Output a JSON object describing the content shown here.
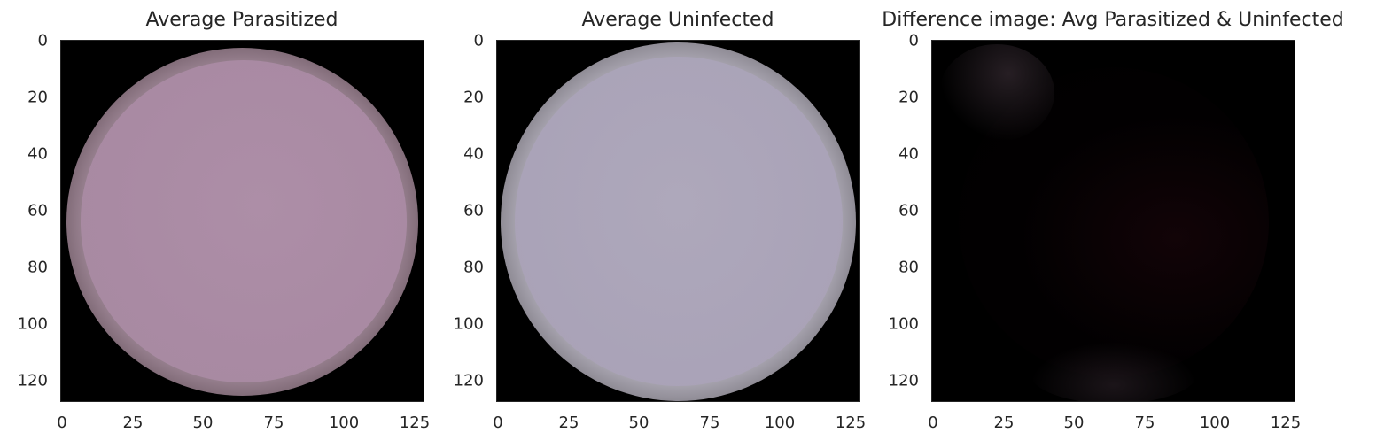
{
  "chart_data": [
    {
      "type": "image",
      "title": "Average Parasitized",
      "xlim": [
        0,
        128
      ],
      "ylim": [
        128,
        0
      ],
      "xticks": [
        "0",
        "25",
        "50",
        "75",
        "100",
        "125"
      ],
      "yticks": [
        "0",
        "20",
        "40",
        "60",
        "80",
        "100",
        "120"
      ],
      "xtick_values": [
        0,
        25,
        50,
        75,
        100,
        125
      ],
      "ytick_values": [
        0,
        20,
        40,
        60,
        80,
        100,
        120
      ],
      "background_color": "#000000",
      "cell_color": "#a98aa3",
      "edge_glow_color": "#c9b2c0"
    },
    {
      "type": "image",
      "title": "Average Uninfected",
      "xlim": [
        0,
        128
      ],
      "ylim": [
        128,
        0
      ],
      "xticks": [
        "0",
        "25",
        "50",
        "75",
        "100",
        "125"
      ],
      "yticks": [
        "0",
        "20",
        "40",
        "60",
        "80",
        "100",
        "120"
      ],
      "xtick_values": [
        0,
        25,
        50,
        75,
        100,
        125
      ],
      "ytick_values": [
        0,
        20,
        40,
        60,
        80,
        100,
        120
      ],
      "background_color": "#000000",
      "cell_color": "#aaa3b8",
      "edge_glow_color": "#d0cfd6"
    },
    {
      "type": "image",
      "title": "Difference image: Avg Parasitized & Uninfected",
      "xlim": [
        0,
        128
      ],
      "ylim": [
        128,
        0
      ],
      "xticks": [
        "0",
        "25",
        "50",
        "75",
        "100",
        "125"
      ],
      "yticks": [
        "0",
        "20",
        "40",
        "60",
        "80",
        "100",
        "120"
      ],
      "xtick_values": [
        0,
        25,
        50,
        75,
        100,
        125
      ],
      "ytick_values": [
        0,
        20,
        40,
        60,
        80,
        100,
        120
      ],
      "background_color": "#000000",
      "cell_color": "#060103",
      "edge_glow_color": "#2a1a22"
    }
  ]
}
